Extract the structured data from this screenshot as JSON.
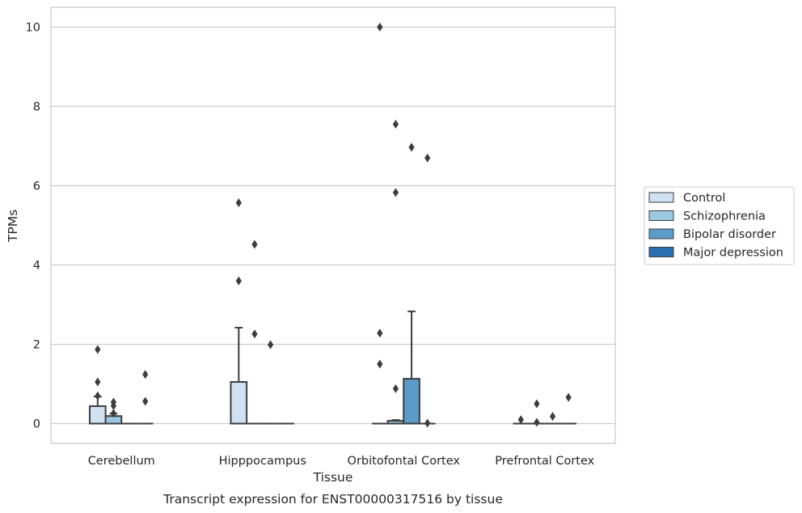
{
  "chart_data": {
    "type": "box",
    "title": "",
    "caption": "Transcript expression for ENST00000317516 by tissue",
    "xlabel": "Tissue",
    "ylabel": "TPMs",
    "ylim": [
      -0.5,
      10.5
    ],
    "yticks": [
      0,
      2,
      4,
      6,
      8,
      10
    ],
    "grid": "horizontal",
    "legend_position": "right",
    "categories": [
      "Cerebellum",
      "Hipppocampus",
      "Orbitofontal Cortex",
      "Prefrontal Cortex"
    ],
    "series": [
      {
        "name": "Control",
        "color": "#d0e1f2",
        "boxes": [
          {
            "q1": 0,
            "median": 0,
            "q3": 0.44,
            "whisker_low": 0,
            "whisker_high": 0.68,
            "outliers": [
              1.87,
              1.05,
              0.7
            ]
          },
          {
            "q1": 0,
            "median": 0,
            "q3": 1.05,
            "whisker_low": 0,
            "whisker_high": 2.42,
            "outliers": [
              5.57,
              3.6
            ]
          },
          {
            "q1": 0,
            "median": 0,
            "q3": 0,
            "whisker_low": 0,
            "whisker_high": 0,
            "outliers": [
              10.0,
              2.28,
              1.5
            ]
          },
          {
            "q1": 0,
            "median": 0,
            "q3": 0,
            "whisker_low": 0,
            "whisker_high": 0,
            "outliers": [
              0.1
            ]
          }
        ]
      },
      {
        "name": "Schizophrenia",
        "color": "#9ac8e0",
        "boxes": [
          {
            "q1": 0,
            "median": 0,
            "q3": 0.19,
            "whisker_low": 0,
            "whisker_high": 0.25,
            "outliers": [
              0.54,
              0.45,
              0.26
            ]
          },
          {
            "q1": 0,
            "median": 0,
            "q3": 0,
            "whisker_low": 0,
            "whisker_high": 0,
            "outliers": [
              4.52,
              2.26
            ]
          },
          {
            "q1": 0,
            "median": 0,
            "q3": 0.07,
            "whisker_low": 0,
            "whisker_high": 0.09,
            "outliers": [
              7.55,
              5.83,
              0.88
            ]
          },
          {
            "q1": 0,
            "median": 0,
            "q3": 0,
            "whisker_low": 0,
            "whisker_high": 0,
            "outliers": [
              0.5,
              0.03
            ]
          }
        ]
      },
      {
        "name": "Bipolar disorder",
        "color": "#5b9bc8",
        "boxes": [
          {
            "q1": 0,
            "median": 0,
            "q3": 0,
            "whisker_low": 0,
            "whisker_high": 0,
            "outliers": []
          },
          {
            "q1": 0,
            "median": 0,
            "q3": 0,
            "whisker_low": 0,
            "whisker_high": 0,
            "outliers": [
              1.99
            ]
          },
          {
            "q1": 0,
            "median": 0,
            "q3": 1.13,
            "whisker_low": 0,
            "whisker_high": 2.83,
            "outliers": [
              6.97
            ]
          },
          {
            "q1": 0,
            "median": 0,
            "q3": 0,
            "whisker_low": 0,
            "whisker_high": 0,
            "outliers": [
              0.18
            ]
          }
        ]
      },
      {
        "name": "Major depression",
        "color": "#2a6fb0",
        "boxes": [
          {
            "q1": 0,
            "median": 0,
            "q3": 0,
            "whisker_low": 0,
            "whisker_high": 0,
            "outliers": [
              1.24,
              0.56
            ]
          },
          {
            "q1": 0,
            "median": 0,
            "q3": 0,
            "whisker_low": 0,
            "whisker_high": 0,
            "outliers": []
          },
          {
            "q1": 0,
            "median": 0,
            "q3": 0,
            "whisker_low": 0,
            "whisker_high": 0,
            "outliers": [
              6.7,
              0.01
            ]
          },
          {
            "q1": 0,
            "median": 0,
            "q3": 0,
            "whisker_low": 0,
            "whisker_high": 0,
            "outliers": [
              0.66
            ]
          }
        ]
      }
    ]
  }
}
